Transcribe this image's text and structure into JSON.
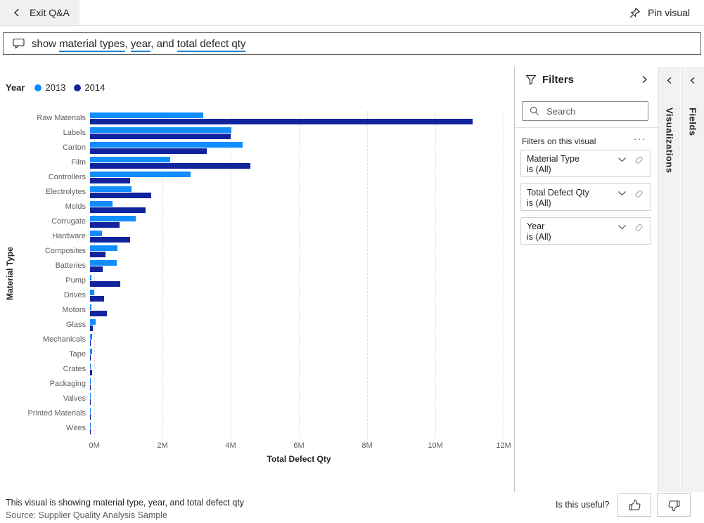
{
  "top_bar": {
    "exit_label": "Exit Q&A",
    "pin_label": "Pin visual"
  },
  "query": {
    "tokens": [
      {
        "text": "show ",
        "underlined": false
      },
      {
        "text": "material types",
        "underlined": true
      },
      {
        "text": ", ",
        "underlined": false
      },
      {
        "text": "year",
        "underlined": true
      },
      {
        "text": ", and ",
        "underlined": false
      },
      {
        "text": "total defect qty",
        "underlined": true
      }
    ],
    "underline_color": "#2383d5"
  },
  "legend": {
    "title": "Year",
    "items": [
      {
        "label": "2013",
        "color": "#118DFF"
      },
      {
        "label": "2014",
        "color": "#12239E"
      }
    ]
  },
  "chart_data": {
    "type": "bar",
    "orientation": "horizontal",
    "xlabel": "Total Defect Qty",
    "ylabel": "Material Type",
    "xlim": [
      0,
      12000000
    ],
    "x_ticks": [
      "0M",
      "2M",
      "4M",
      "6M",
      "8M",
      "10M",
      "12M"
    ],
    "grid": "vertical-dotted",
    "legend_position": "top-left",
    "categories": [
      "Raw Materials",
      "Labels",
      "Carton",
      "Film",
      "Controllers",
      "Electrolytes",
      "Molds",
      "Corrugate",
      "Hardware",
      "Composites",
      "Batteries",
      "Pump",
      "Drives",
      "Motors",
      "Glass",
      "Mechanicals",
      "Tape",
      "Crates",
      "Packaging",
      "Valves",
      "Printed Materials",
      "Wires"
    ],
    "series": [
      {
        "name": "2013",
        "color": "#118DFF",
        "values": [
          3320000,
          4150000,
          4480000,
          2350000,
          2950000,
          1220000,
          670000,
          1330000,
          360000,
          800000,
          780000,
          40000,
          120000,
          40000,
          170000,
          70000,
          60000,
          10000,
          20000,
          30000,
          10000,
          5000
        ]
      },
      {
        "name": "2014",
        "color": "#12239E",
        "values": [
          11220000,
          4120000,
          3430000,
          4710000,
          1170000,
          1790000,
          1620000,
          860000,
          1180000,
          450000,
          380000,
          880000,
          410000,
          490000,
          80000,
          20000,
          10000,
          60000,
          20000,
          10000,
          30000,
          5000
        ]
      }
    ]
  },
  "filters_panel": {
    "title": "Filters",
    "search_placeholder": "Search",
    "section_label": "Filters on this visual",
    "more_icon": "···",
    "cards": [
      {
        "title": "Material Type",
        "value": "is (All)"
      },
      {
        "title": "Total Defect Qty",
        "value": "is (All)"
      },
      {
        "title": "Year",
        "value": "is (All)"
      }
    ]
  },
  "side_tabs": [
    {
      "label": "Visualizations"
    },
    {
      "label": "Fields"
    }
  ],
  "footer": {
    "description": "This visual is showing material type, year, and total defect qty",
    "source": "Source: Supplier Quality Analysis Sample",
    "useful_label": "Is this useful?"
  }
}
